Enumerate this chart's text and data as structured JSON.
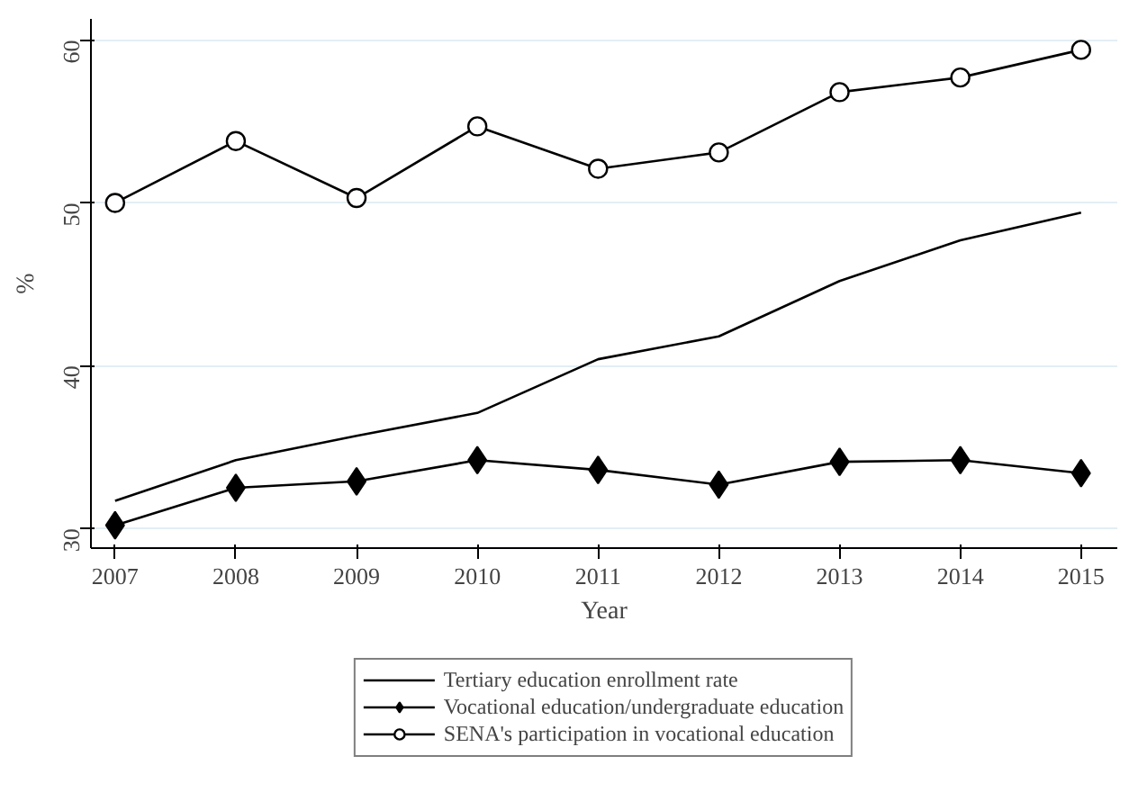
{
  "chart_data": {
    "type": "line",
    "xlabel": "Year",
    "ylabel": "%",
    "x": [
      2007,
      2008,
      2009,
      2010,
      2011,
      2012,
      2013,
      2014,
      2015
    ],
    "xlim": [
      2006.8,
      2015.3
    ],
    "xticks": [
      2007,
      2008,
      2009,
      2010,
      2011,
      2012,
      2013,
      2014,
      2015
    ],
    "ylim": [
      28.8,
      61.3
    ],
    "yticks": [
      30,
      40,
      50,
      60
    ],
    "grid": "y",
    "legend": "bottom",
    "series": [
      {
        "name": "Tertiary education enrollment rate",
        "color": "#000000",
        "marker": "none",
        "values": [
          31.7,
          34.2,
          35.7,
          37.1,
          40.4,
          41.8,
          45.2,
          47.7,
          49.4
        ]
      },
      {
        "name": "Vocational education/undergraduate education",
        "color": "#000000",
        "marker": "diamond",
        "values": [
          30.2,
          32.5,
          32.9,
          34.2,
          33.6,
          32.7,
          34.1,
          34.2,
          33.4
        ]
      },
      {
        "name": "SENA's participation in vocational education",
        "color": "#000000",
        "marker": "circle",
        "values": [
          50.0,
          53.8,
          50.3,
          54.7,
          52.1,
          53.1,
          56.8,
          57.7,
          59.4
        ]
      }
    ]
  }
}
